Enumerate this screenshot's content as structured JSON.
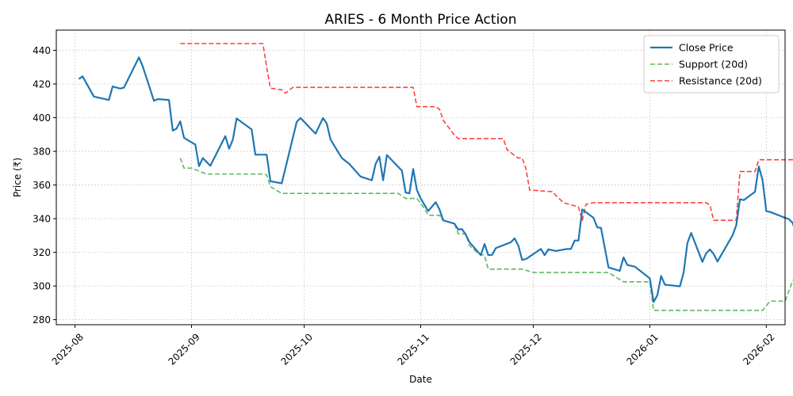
{
  "chart_data": {
    "type": "line",
    "title": "ARIES - 6 Month Price Action",
    "xlabel": "Date",
    "ylabel": "Price (₹)",
    "x_ticks": [
      "2025-08",
      "2025-09",
      "2025-10",
      "2025-11",
      "2025-12",
      "2026-01",
      "2026-02"
    ],
    "y_ticks": [
      280,
      300,
      320,
      340,
      360,
      380,
      400,
      420,
      440
    ],
    "xlim": [
      "2025-07-27",
      "2026-02-06"
    ],
    "ylim": [
      277,
      452
    ],
    "grid": true,
    "legend_position": "top-right",
    "series": [
      {
        "name": "Close Price",
        "color": "#1f77b4",
        "style": "solid",
        "points": [
          [
            "2025-08-02",
            423
          ],
          [
            "2025-08-03",
            424.5
          ],
          [
            "2025-08-06",
            412.5
          ],
          [
            "2025-08-10",
            410.5
          ],
          [
            "2025-08-11",
            418.5
          ],
          [
            "2025-08-13",
            417.3
          ],
          [
            "2025-08-14",
            417.8
          ],
          [
            "2025-08-18",
            435.8
          ],
          [
            "2025-08-19",
            430.5
          ],
          [
            "2025-08-22",
            410
          ],
          [
            "2025-08-23",
            411
          ],
          [
            "2025-08-26",
            410.5
          ],
          [
            "2025-08-27",
            392.3
          ],
          [
            "2025-08-28",
            393.5
          ],
          [
            "2025-08-29",
            397.8
          ],
          [
            "2025-08-30",
            388
          ],
          [
            "2025-09-02",
            384
          ],
          [
            "2025-09-03",
            371.2
          ],
          [
            "2025-09-04",
            376
          ],
          [
            "2025-09-06",
            371.4
          ],
          [
            "2025-09-10",
            389
          ],
          [
            "2025-09-11",
            381.5
          ],
          [
            "2025-09-12",
            387
          ],
          [
            "2025-09-13",
            399.5
          ],
          [
            "2025-09-17",
            393
          ],
          [
            "2025-09-18",
            378
          ],
          [
            "2025-09-21",
            378
          ],
          [
            "2025-09-22",
            362.2
          ],
          [
            "2025-09-25",
            361
          ],
          [
            "2025-09-26",
            370
          ],
          [
            "2025-09-29",
            397.5
          ],
          [
            "2025-09-30",
            399.8
          ],
          [
            "2025-10-04",
            390.5
          ],
          [
            "2025-10-06",
            399.8
          ],
          [
            "2025-10-07",
            396.5
          ],
          [
            "2025-10-08",
            387
          ],
          [
            "2025-10-11",
            376
          ],
          [
            "2025-10-13",
            372.5
          ],
          [
            "2025-10-16",
            365
          ],
          [
            "2025-10-19",
            362.8
          ],
          [
            "2025-10-20",
            372.5
          ],
          [
            "2025-10-21",
            376.8
          ],
          [
            "2025-10-22",
            362.8
          ],
          [
            "2025-10-23",
            377.8
          ],
          [
            "2025-10-27",
            368.5
          ],
          [
            "2025-10-28",
            355.5
          ],
          [
            "2025-10-29",
            355
          ],
          [
            "2025-10-30",
            369.5
          ],
          [
            "2025-10-31",
            357
          ],
          [
            "2025-11-01",
            352
          ],
          [
            "2025-11-03",
            344.5
          ],
          [
            "2025-11-05",
            349.8
          ],
          [
            "2025-11-06",
            345.5
          ],
          [
            "2025-11-07",
            339
          ],
          [
            "2025-11-10",
            337
          ],
          [
            "2025-11-11",
            333.5
          ],
          [
            "2025-11-12",
            333.8
          ],
          [
            "2025-11-13",
            330.5
          ],
          [
            "2025-11-14",
            326
          ],
          [
            "2025-11-17",
            318.3
          ],
          [
            "2025-11-18",
            325
          ],
          [
            "2025-11-19",
            318.3
          ],
          [
            "2025-11-20",
            318.5
          ],
          [
            "2025-11-21",
            322.5
          ],
          [
            "2025-11-25",
            326
          ],
          [
            "2025-11-26",
            328.3
          ],
          [
            "2025-11-27",
            324
          ],
          [
            "2025-11-28",
            315.5
          ],
          [
            "2025-11-29",
            316
          ],
          [
            "2025-12-03",
            322
          ],
          [
            "2025-12-04",
            318.3
          ],
          [
            "2025-12-05",
            321.8
          ],
          [
            "2025-12-07",
            320.8
          ],
          [
            "2025-12-10",
            322
          ],
          [
            "2025-12-11",
            322
          ],
          [
            "2025-12-12",
            327
          ],
          [
            "2025-12-13",
            327
          ],
          [
            "2025-12-14",
            345.5
          ],
          [
            "2025-12-17",
            340.5
          ],
          [
            "2025-12-18",
            334.8
          ],
          [
            "2025-12-19",
            334.5
          ],
          [
            "2025-12-21",
            311
          ],
          [
            "2025-12-24",
            309
          ],
          [
            "2025-12-25",
            317
          ],
          [
            "2025-12-26",
            312.5
          ],
          [
            "2025-12-28",
            311.5
          ],
          [
            "2026-01-01",
            304.5
          ],
          [
            "2026-01-02",
            290.5
          ],
          [
            "2026-01-03",
            294.5
          ],
          [
            "2026-01-04",
            306
          ],
          [
            "2026-01-05",
            300.8
          ],
          [
            "2026-01-09",
            299.8
          ],
          [
            "2026-01-10",
            308
          ],
          [
            "2026-01-11",
            325.5
          ],
          [
            "2026-01-12",
            331.5
          ],
          [
            "2026-01-15",
            314.3
          ],
          [
            "2026-01-16",
            319.5
          ],
          [
            "2026-01-17",
            321.7
          ],
          [
            "2026-01-18",
            319
          ],
          [
            "2026-01-19",
            314.5
          ],
          [
            "2026-01-23",
            330
          ],
          [
            "2026-01-24",
            336
          ],
          [
            "2026-01-25",
            351.5
          ],
          [
            "2026-01-26",
            351
          ],
          [
            "2026-01-29",
            356
          ],
          [
            "2026-01-30",
            371
          ],
          [
            "2026-01-31",
            363
          ],
          [
            "2026-02-01",
            344.5
          ],
          [
            "2026-02-02",
            344
          ],
          [
            "2026-02-06",
            340.5
          ],
          [
            "2026-02-07",
            339.8
          ],
          [
            "2026-02-08",
            337.5
          ],
          [
            "2026-02-09",
            331
          ],
          [
            "2026-02-10",
            328.2
          ],
          [
            "2026-02-13",
            334.3
          ]
        ]
      },
      {
        "name": "Support (20d)",
        "color": "#2ca02c",
        "style": "dashed",
        "points": [
          [
            "2025-08-29",
            376
          ],
          [
            "2025-08-30",
            370
          ],
          [
            "2025-09-01",
            370
          ],
          [
            "2025-09-05",
            366.5
          ],
          [
            "2025-09-20",
            366.5
          ],
          [
            "2025-09-21",
            366
          ],
          [
            "2025-09-22",
            359
          ],
          [
            "2025-09-25",
            355
          ],
          [
            "2025-10-26",
            355
          ],
          [
            "2025-10-28",
            352
          ],
          [
            "2025-10-31",
            352
          ],
          [
            "2025-11-02",
            346
          ],
          [
            "2025-11-03",
            342
          ],
          [
            "2025-11-06",
            342
          ],
          [
            "2025-11-07",
            339
          ],
          [
            "2025-11-10",
            337
          ],
          [
            "2025-11-11",
            331
          ],
          [
            "2025-11-13",
            331
          ],
          [
            "2025-11-14",
            324
          ],
          [
            "2025-11-16",
            320
          ],
          [
            "2025-11-18",
            318
          ],
          [
            "2025-11-19",
            310
          ],
          [
            "2025-11-28",
            310
          ],
          [
            "2025-12-01",
            308
          ],
          [
            "2025-12-21",
            308
          ],
          [
            "2025-12-25",
            302.5
          ],
          [
            "2026-01-01",
            302.5
          ],
          [
            "2026-01-02",
            285.5
          ],
          [
            "2026-01-31",
            285.5
          ],
          [
            "2026-02-02",
            291
          ],
          [
            "2026-02-06",
            291
          ],
          [
            "2026-02-08",
            303
          ],
          [
            "2026-02-09",
            306
          ],
          [
            "2026-02-11",
            307
          ],
          [
            "2026-02-13",
            311
          ]
        ]
      },
      {
        "name": "Resistance (20d)",
        "color": "#ff0000",
        "style": "dashed",
        "points": [
          [
            "2025-08-29",
            444
          ],
          [
            "2025-09-20",
            444
          ],
          [
            "2025-09-21",
            430
          ],
          [
            "2025-09-22",
            417.5
          ],
          [
            "2025-09-25",
            416.5
          ],
          [
            "2025-09-26",
            414.5
          ],
          [
            "2025-09-28",
            418
          ],
          [
            "2025-10-28",
            418
          ],
          [
            "2025-10-30",
            418
          ],
          [
            "2025-10-31",
            406.5
          ],
          [
            "2025-11-05",
            406.5
          ],
          [
            "2025-11-06",
            405
          ],
          [
            "2025-11-07",
            398.5
          ],
          [
            "2025-11-10",
            389.5
          ],
          [
            "2025-11-11",
            387.5
          ],
          [
            "2025-11-23",
            387.5
          ],
          [
            "2025-11-24",
            381
          ],
          [
            "2025-11-26",
            377.5
          ],
          [
            "2025-11-27",
            376
          ],
          [
            "2025-11-28",
            376
          ],
          [
            "2025-11-29",
            370
          ],
          [
            "2025-11-30",
            357
          ],
          [
            "2025-12-03",
            356.5
          ],
          [
            "2025-12-06",
            356
          ],
          [
            "2025-12-09",
            349.5
          ],
          [
            "2025-12-13",
            347
          ],
          [
            "2025-12-14",
            339
          ],
          [
            "2025-12-15",
            348.5
          ],
          [
            "2025-12-16",
            349
          ],
          [
            "2025-12-17",
            349.5
          ],
          [
            "2026-01-16",
            349.5
          ],
          [
            "2026-01-17",
            348
          ],
          [
            "2026-01-18",
            339
          ],
          [
            "2026-01-24",
            339
          ],
          [
            "2026-01-25",
            368
          ],
          [
            "2026-01-29",
            368
          ],
          [
            "2026-01-30",
            375
          ],
          [
            "2026-02-13",
            375
          ]
        ]
      }
    ]
  }
}
